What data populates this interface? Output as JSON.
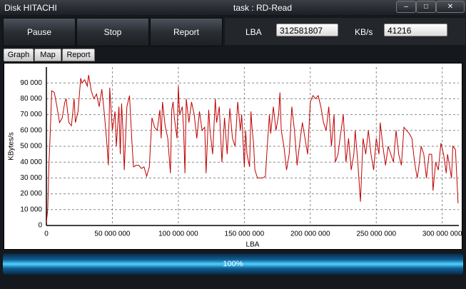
{
  "window": {
    "title": "Disk HITACHI",
    "task": "task : RD-Read"
  },
  "toolbar": {
    "buttons": [
      "Pause",
      "Stop",
      "Report"
    ],
    "lba_label": "LBA",
    "lba_value": "312581807",
    "speed_label": "KB/s",
    "speed_value": "41216"
  },
  "tabs": [
    "Graph",
    "Map",
    "Report"
  ],
  "chart_data": {
    "type": "line",
    "x_label": "LBA",
    "y_label": "KBytes/s",
    "color": "#c00000",
    "grid": true,
    "xlim": [
      0,
      312581807
    ],
    "ylim": [
      0,
      100000
    ],
    "xticks": [
      0,
      {
        "value": 50000000,
        "label": "50 000 000"
      },
      {
        "value": 100000000,
        "label": "100 000 000"
      },
      {
        "value": 150000000,
        "label": "150 000 000"
      },
      {
        "value": 200000000,
        "label": "200 000 000"
      },
      {
        "value": 250000000,
        "label": "250 000 000"
      },
      {
        "value": 300000000,
        "label": "300 000 000"
      }
    ],
    "yticks": [
      0,
      {
        "value": 10000,
        "label": "10 000"
      },
      {
        "value": 20000,
        "label": "20 000"
      },
      {
        "value": 30000,
        "label": "30 000"
      },
      {
        "value": 40000,
        "label": "40 000"
      },
      {
        "value": 50000,
        "label": "50 000"
      },
      {
        "value": 60000,
        "label": "60 000"
      },
      {
        "value": 70000,
        "label": "70 000"
      },
      {
        "value": 80000,
        "label": "80 000"
      },
      {
        "value": 90000,
        "label": "90 000"
      }
    ],
    "x": [
      0,
      1000000,
      2000000,
      3000000,
      4000000,
      6000000,
      8000000,
      10000000,
      12000000,
      14000000,
      15000000,
      17000000,
      19000000,
      21000000,
      22000000,
      24000000,
      26000000,
      27000000,
      29000000,
      31000000,
      32000000,
      34000000,
      36000000,
      38000000,
      40000000,
      42000000,
      44000000,
      46000000,
      47000000,
      48000000,
      50000000,
      52000000,
      53000000,
      55000000,
      56000000,
      57000000,
      58000000,
      59000000,
      61000000,
      63000000,
      65000000,
      66000000,
      68000000,
      70000000,
      72000000,
      74000000,
      76000000,
      78000000,
      80000000,
      82000000,
      84000000,
      86000000,
      87000000,
      88000000,
      90000000,
      92000000,
      94000000,
      95000000,
      96000000,
      97000000,
      99000000,
      100000000,
      101000000,
      103000000,
      104000000,
      105000000,
      106000000,
      108000000,
      110000000,
      112000000,
      114000000,
      116000000,
      118000000,
      120000000,
      121000000,
      123000000,
      124000000,
      126000000,
      128000000,
      129000000,
      131000000,
      133000000,
      135000000,
      137000000,
      139000000,
      141000000,
      143000000,
      145000000,
      147000000,
      148000000,
      150000000,
      151000000,
      152000000,
      154000000,
      155000000,
      156000000,
      157000000,
      158000000,
      160000000,
      162000000,
      164000000,
      166000000,
      167000000,
      169000000,
      170000000,
      172000000,
      174000000,
      176000000,
      177000000,
      178000000,
      180000000,
      182000000,
      184000000,
      186000000,
      188000000,
      190000000,
      192000000,
      194000000,
      196000000,
      198000000,
      200000000,
      202000000,
      204000000,
      206000000,
      208000000,
      210000000,
      212000000,
      214000000,
      216000000,
      218000000,
      219000000,
      221000000,
      223000000,
      225000000,
      227000000,
      229000000,
      231000000,
      233000000,
      234000000,
      235000000,
      236000000,
      238000000,
      240000000,
      242000000,
      244000000,
      246000000,
      248000000,
      250000000,
      252000000,
      253000000,
      255000000,
      257000000,
      259000000,
      261000000,
      263000000,
      265000000,
      267000000,
      269000000,
      271000000,
      273000000,
      275000000,
      277000000,
      279000000,
      281000000,
      282000000,
      284000000,
      286000000,
      288000000,
      290000000,
      292000000,
      293000000,
      295000000,
      297000000,
      299000000,
      301000000,
      303000000,
      304000000,
      305000000,
      307000000,
      308000000,
      310000000,
      312000000
    ],
    "values": [
      2000,
      10000,
      40000,
      60000,
      85000,
      84000,
      75000,
      65000,
      68000,
      78000,
      80000,
      65000,
      63000,
      80000,
      65000,
      72000,
      93000,
      90000,
      92000,
      88000,
      95000,
      85000,
      80000,
      83000,
      75000,
      86000,
      70000,
      50000,
      38000,
      87000,
      60000,
      72000,
      50000,
      75000,
      45000,
      77000,
      60000,
      35000,
      75000,
      82000,
      50000,
      37000,
      38000,
      38000,
      36000,
      37000,
      31000,
      37000,
      68000,
      62000,
      60000,
      73000,
      55000,
      78000,
      63000,
      55000,
      33000,
      73000,
      78000,
      68000,
      55000,
      88000,
      70000,
      75000,
      60000,
      33000,
      80000,
      65000,
      78000,
      70000,
      55000,
      72000,
      60000,
      62000,
      33000,
      73000,
      60000,
      45000,
      80000,
      65000,
      75000,
      40000,
      68000,
      45000,
      74000,
      55000,
      50000,
      78000,
      60000,
      70000,
      37000,
      60000,
      45000,
      37000,
      72000,
      60000,
      52000,
      35000,
      30000,
      30000,
      30000,
      31000,
      45000,
      70000,
      58000,
      75000,
      60000,
      70000,
      84000,
      60000,
      50000,
      35000,
      45000,
      75000,
      60000,
      38000,
      52000,
      65000,
      55000,
      45000,
      78000,
      82000,
      80000,
      82000,
      75000,
      65000,
      60000,
      75000,
      50000,
      70000,
      40000,
      45000,
      58000,
      70000,
      40000,
      55000,
      35000,
      45000,
      60000,
      50000,
      40000,
      15000,
      55000,
      45000,
      60000,
      45000,
      35000,
      55000,
      45000,
      65000,
      50000,
      38000,
      50000,
      45000,
      40000,
      60000,
      45000,
      38000,
      62000,
      60000,
      58000,
      55000,
      40000,
      30000,
      35000,
      50000,
      45000,
      30000,
      45000,
      45000,
      22000,
      40000,
      35000,
      52000,
      45000,
      33000,
      45000,
      40000,
      30000,
      50000,
      48000,
      14000
    ]
  },
  "progress": {
    "label": "100%"
  }
}
